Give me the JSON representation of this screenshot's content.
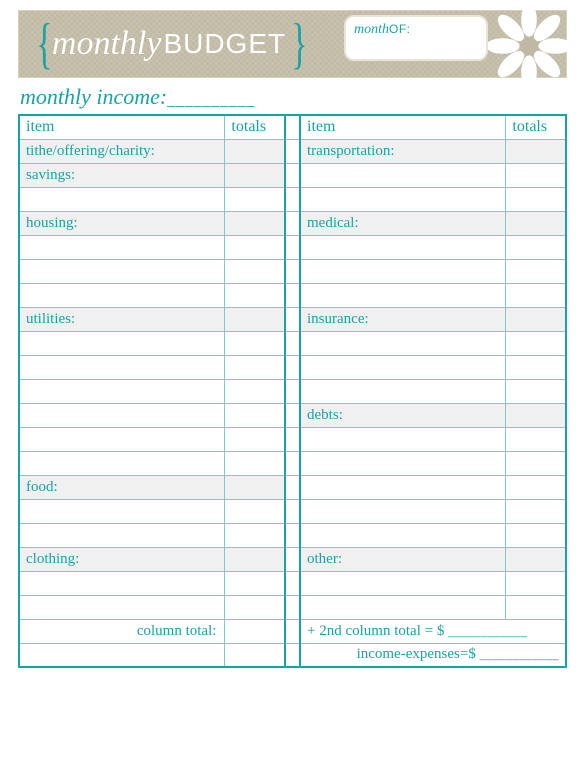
{
  "banner": {
    "brace_left": "{",
    "brace_right": "}",
    "title_script": "monthly",
    "title_caps": "BUDGET",
    "month_label_script": "month",
    "month_label_caps": "OF:"
  },
  "income": {
    "label": "monthly income:",
    "dashes": "__________"
  },
  "headers": {
    "item": "item",
    "totals": "totals"
  },
  "left_rows": [
    {
      "type": "cat",
      "label": "tithe/offering/charity:"
    },
    {
      "type": "cat",
      "label": "savings:"
    },
    {
      "type": "blank",
      "label": ""
    },
    {
      "type": "cat",
      "label": "housing:"
    },
    {
      "type": "blank",
      "label": ""
    },
    {
      "type": "blank",
      "label": ""
    },
    {
      "type": "blank",
      "label": ""
    },
    {
      "type": "cat",
      "label": "utilities:"
    },
    {
      "type": "blank",
      "label": ""
    },
    {
      "type": "blank",
      "label": ""
    },
    {
      "type": "blank",
      "label": ""
    },
    {
      "type": "blank",
      "label": ""
    },
    {
      "type": "blank",
      "label": ""
    },
    {
      "type": "blank",
      "label": ""
    },
    {
      "type": "cat",
      "label": "food:"
    },
    {
      "type": "blank",
      "label": ""
    },
    {
      "type": "blank",
      "label": ""
    },
    {
      "type": "cat",
      "label": "clothing:"
    },
    {
      "type": "blank",
      "label": ""
    },
    {
      "type": "blank",
      "label": ""
    }
  ],
  "right_rows": [
    {
      "type": "cat",
      "label": "transportation:"
    },
    {
      "type": "blank",
      "label": ""
    },
    {
      "type": "blank",
      "label": ""
    },
    {
      "type": "cat",
      "label": "medical:"
    },
    {
      "type": "blank",
      "label": ""
    },
    {
      "type": "blank",
      "label": ""
    },
    {
      "type": "blank",
      "label": ""
    },
    {
      "type": "cat",
      "label": "insurance:"
    },
    {
      "type": "blank",
      "label": ""
    },
    {
      "type": "blank",
      "label": ""
    },
    {
      "type": "blank",
      "label": ""
    },
    {
      "type": "cat",
      "label": "debts:"
    },
    {
      "type": "blank",
      "label": ""
    },
    {
      "type": "blank",
      "label": ""
    },
    {
      "type": "blank",
      "label": ""
    },
    {
      "type": "blank",
      "label": ""
    },
    {
      "type": "blank",
      "label": ""
    },
    {
      "type": "cat",
      "label": "other:"
    },
    {
      "type": "blank",
      "label": ""
    },
    {
      "type": "blank",
      "label": ""
    }
  ],
  "footer": {
    "column_total": "column total:",
    "plus_second": "+ 2nd column total = $",
    "income_expenses": "income-expenses=$",
    "dashes": "____________"
  },
  "colors": {
    "teal": "#1aa3a3",
    "teal_light": "#7ec9c9",
    "burlap": "#bfb8a3",
    "shade": "#f0f0f0",
    "white": "#ffffff"
  }
}
